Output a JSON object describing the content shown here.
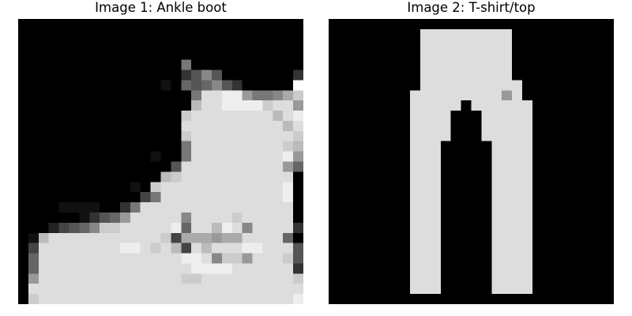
{
  "images": [
    {
      "title": "Image 1: Ankle boot",
      "pixels": [
        "0000000000000000000000000000",
        "0000000000000000000000000000",
        "0000000000000000000000000000",
        "0000000000000000000000000000",
        "0000000000000000700000000000",
        "0000000000000000358500000003",
        "000000000000001065685300000f",
        "000000000000000007ddee9778ac",
        "00000000000000000bddeeeecdd9",
        "0000000000000000cddddddddbde",
        "0000000000000000ddddddddddbd",
        "0000000000000000cddddddddddc",
        "00000000000000007dddddddddcb",
        "00000000000001007ddddddddde9",
        "0000000000000005dddddddddd96",
        "00000000000000bcddddddddddd0",
        "0000000000010cdddddddddddde0",
        "00000000000047dddddddddddde0",
        "000011110037ddddddddddddddd0",
        "00000013569ddddd8ddddcddddd0",
        "00024568ccddddde6ddbed8dddd3",
        "01bdddddddddddc4aaa9aadddd60",
        "04ddddddddeedcdb4dbdddeeddd5",
        "06ddddddddddddddeed8cc9dddc5",
        "06dddddddddddddddeeeedddddd3",
        "09ddddddddddddddccdddddddddc",
        "0ddddddddddddddddddddddddddd",
        "0cddddddddddddddddddddddddde"
      ]
    },
    {
      "title": "Image 2: T-shirt/top",
      "pixels": [
        "0000000000000000000000000000",
        "000000000ddddddddd0000000000",
        "000000000ddddddddd0000000000",
        "000000000ddddddddd0000000000",
        "000000000ddddddddd0000000000",
        "000000000ddddddddd0000000000",
        "000000000dddddddddd000000000",
        "00000000ddddddddd9d000000000",
        "00000000ddddd0dddddd00000000",
        "00000000dddd000ddddd00000000",
        "00000000dddd000ddddd00000000",
        "00000000dddd000ddddd00000000",
        "00000000ddd00000dddd00000000",
        "00000000ddd00000dddd00000000",
        "00000000ddd00000dddd00000000",
        "00000000ddd00000dddd00000000",
        "00000000ddd00000dddd00000000",
        "00000000ddd00000dddd00000000",
        "00000000ddd00000dddd00000000",
        "00000000ddd00000dddd00000000",
        "00000000ddd00000dddd00000000",
        "00000000ddd00000dddd00000000",
        "00000000ddd00000dddd00000000",
        "00000000ddd00000dddd00000000",
        "00000000ddd00000dddd00000000",
        "00000000ddd00000dddd00000000",
        "00000000ddd00000dddd00000000",
        "0000000000000000000000000000"
      ]
    }
  ]
}
